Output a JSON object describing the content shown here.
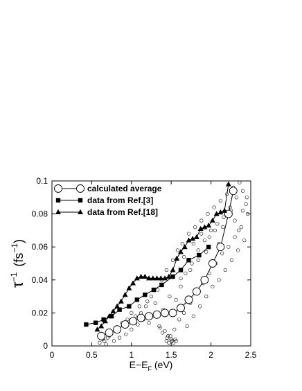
{
  "chart_data": {
    "type": "scatter",
    "xlabel": "E−E",
    "xlabel_sub": "F",
    "xlabel_unit": " (eV)",
    "ylabel": "τ",
    "ylabel_sup": "−1",
    "ylabel_unit": "(fs",
    "ylabel_unit_sup": "−1",
    "ylabel_close": ")",
    "xlim": [
      0,
      2.5
    ],
    "ylim": [
      0,
      0.1
    ],
    "x_ticks": [
      "0",
      "0.5",
      "1",
      "1.5",
      "2",
      "2.5"
    ],
    "y_ticks": [
      "0",
      "0.02",
      "0.04",
      "0.06",
      "0.08",
      "0.1"
    ],
    "grid": false,
    "legend_position": "top-left",
    "legend": [
      {
        "label": "calculated average",
        "marker": "open-circle"
      },
      {
        "label": "data from Ref.[3]",
        "marker": "filled-square"
      },
      {
        "label": "data from Ref.[18]",
        "marker": "filled-triangle"
      }
    ],
    "series": [
      {
        "name": "calculated average",
        "marker": "open-circle",
        "line": true,
        "x": [
          0.62,
          0.72,
          0.82,
          0.92,
          1.02,
          1.12,
          1.22,
          1.32,
          1.42,
          1.52,
          1.62,
          1.72,
          1.82,
          1.92,
          2.02,
          2.12,
          2.22,
          2.28
        ],
        "y": [
          0.006,
          0.008,
          0.01,
          0.013,
          0.015,
          0.017,
          0.018,
          0.019,
          0.02,
          0.02,
          0.023,
          0.028,
          0.033,
          0.04,
          0.05,
          0.06,
          0.08,
          0.094
        ]
      },
      {
        "name": "data from Ref.[3]",
        "marker": "filled-square",
        "line": true,
        "x": [
          0.43,
          0.55,
          0.65,
          0.75,
          0.85,
          0.97,
          1.07,
          1.17,
          1.28,
          1.38,
          1.52,
          1.62,
          1.72,
          1.85,
          1.97
        ],
        "y": [
          0.013,
          0.014,
          0.016,
          0.018,
          0.022,
          0.024,
          0.028,
          0.031,
          0.034,
          0.037,
          0.042,
          0.046,
          0.052,
          0.055,
          0.06
        ]
      },
      {
        "name": "data from Ref.[18]",
        "marker": "filled-triangle",
        "line": true,
        "x": [
          0.57,
          0.62,
          0.67,
          0.72,
          0.77,
          0.82,
          0.87,
          0.92,
          0.97,
          1.02,
          1.07,
          1.12,
          1.17,
          1.22,
          1.27,
          1.32,
          1.37,
          1.42,
          1.47,
          1.52,
          1.57,
          1.62,
          1.67,
          1.72,
          1.77,
          1.82,
          1.87,
          1.92,
          1.97,
          2.02,
          2.07,
          2.12,
          2.17,
          2.22
        ],
        "y": [
          0.01,
          0.012,
          0.015,
          0.018,
          0.021,
          0.024,
          0.027,
          0.031,
          0.035,
          0.038,
          0.041,
          0.042,
          0.042,
          0.041,
          0.041,
          0.041,
          0.041,
          0.041,
          0.042,
          0.046,
          0.053,
          0.057,
          0.06,
          0.064,
          0.065,
          0.066,
          0.071,
          0.072,
          0.073,
          0.076,
          0.08,
          0.081,
          0.082,
          0.098
        ]
      },
      {
        "name": "",
        "marker": "small-open-circle",
        "line": false,
        "x": [
          0.6,
          0.64,
          0.68,
          0.72,
          0.75,
          0.78,
          0.82,
          0.85,
          0.9,
          0.93,
          0.97,
          1.0,
          1.05,
          1.08,
          1.12,
          1.15,
          1.18,
          1.22,
          1.25,
          1.28,
          1.3,
          1.33,
          1.35,
          1.38,
          1.4,
          1.42,
          1.44,
          1.46,
          1.48,
          1.5,
          1.52,
          1.54,
          1.56,
          1.58,
          1.6,
          1.62,
          1.64,
          1.66,
          1.68,
          1.7,
          1.72,
          1.74,
          1.76,
          1.78,
          1.8,
          1.82,
          1.84,
          1.86,
          1.88,
          1.9,
          1.92,
          1.94,
          1.96,
          1.98,
          2.0,
          2.02,
          2.04,
          2.06,
          2.08,
          2.1,
          2.12,
          2.14,
          2.16,
          2.18,
          2.2,
          2.22,
          2.24,
          2.26,
          2.28,
          2.3,
          2.32,
          2.34,
          2.36,
          2.38,
          2.4,
          2.42,
          2.44,
          2.46,
          1.44,
          1.47,
          1.5,
          1.53,
          1.56,
          1.45,
          1.49,
          1.51,
          1.55,
          1.36,
          1.39,
          1.62,
          1.66,
          1.74,
          1.78,
          1.84,
          1.88,
          1.94,
          1.98,
          2.05,
          2.1,
          2.15,
          2.25,
          2.3,
          2.35,
          2.4,
          2.45,
          1.2,
          1.1,
          1.0,
          0.95,
          0.88,
          0.8,
          0.7,
          0.66
        ],
        "y": [
          0.002,
          0.004,
          0.001,
          0.006,
          0.008,
          0.003,
          0.01,
          0.005,
          0.012,
          0.007,
          0.015,
          0.01,
          0.018,
          0.013,
          0.02,
          0.016,
          0.024,
          0.014,
          0.03,
          0.018,
          0.026,
          0.034,
          0.012,
          0.04,
          0.022,
          0.009,
          0.046,
          0.006,
          0.03,
          0.004,
          0.052,
          0.01,
          0.028,
          0.058,
          0.016,
          0.036,
          0.062,
          0.02,
          0.044,
          0.012,
          0.068,
          0.026,
          0.05,
          0.018,
          0.072,
          0.032,
          0.058,
          0.024,
          0.076,
          0.038,
          0.064,
          0.03,
          0.08,
          0.044,
          0.07,
          0.036,
          0.084,
          0.05,
          0.074,
          0.04,
          0.088,
          0.056,
          0.078,
          0.046,
          0.092,
          0.06,
          0.084,
          0.052,
          0.096,
          0.066,
          0.09,
          0.058,
          0.099,
          0.072,
          0.094,
          0.064,
          0.086,
          0.08,
          0.003,
          0.002,
          0.004,
          0.002,
          0.003,
          0.005,
          0.006,
          0.003,
          0.004,
          0.011,
          0.008,
          0.041,
          0.054,
          0.046,
          0.062,
          0.052,
          0.068,
          0.057,
          0.066,
          0.07,
          0.062,
          0.072,
          0.082,
          0.076,
          0.07,
          0.082,
          0.09,
          0.027,
          0.024,
          0.02,
          0.016,
          0.014,
          0.009,
          0.005,
          0.003
        ]
      }
    ]
  }
}
